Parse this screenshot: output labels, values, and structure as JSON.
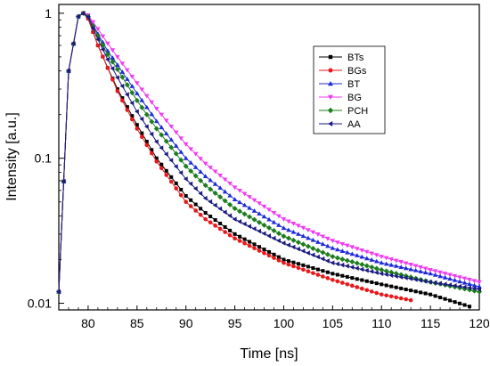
{
  "chart_data": {
    "type": "scatter",
    "title": "",
    "xlabel": "Time [ns]",
    "ylabel": "Intensity [a.u.]",
    "xlim": [
      77,
      120
    ],
    "ylim": [
      0.009,
      1.15
    ],
    "yscale": "log",
    "xticks": [
      "80",
      "85",
      "90",
      "95",
      "100",
      "105",
      "110",
      "115",
      "120"
    ],
    "xtick_values": [
      80,
      85,
      90,
      95,
      100,
      105,
      110,
      115,
      120
    ],
    "yticks": [
      "0.01",
      "0.1",
      "1"
    ],
    "ytick_values": [
      0.01,
      0.1,
      1
    ],
    "grid": false,
    "legend_position": "top-right",
    "series": [
      {
        "name": "BTs",
        "color": "#000000",
        "marker": "square",
        "x": [
          77,
          78,
          79,
          79.5,
          80,
          81,
          82,
          83,
          85,
          87,
          90,
          92,
          95,
          100,
          105,
          110,
          115,
          119
        ],
        "y": [
          0.012,
          0.4,
          0.95,
          1.0,
          0.92,
          0.6,
          0.42,
          0.3,
          0.17,
          0.1,
          0.055,
          0.042,
          0.03,
          0.02,
          0.016,
          0.0135,
          0.0115,
          0.0095
        ]
      },
      {
        "name": "BGs",
        "color": "#e8191c",
        "marker": "circle",
        "x": [
          77,
          78,
          79,
          79.5,
          80,
          81,
          82,
          83,
          85,
          87,
          90,
          92,
          95,
          100,
          105,
          110,
          113
        ],
        "y": [
          0.012,
          0.4,
          0.95,
          1.0,
          0.92,
          0.6,
          0.42,
          0.29,
          0.16,
          0.095,
          0.05,
          0.038,
          0.028,
          0.019,
          0.0145,
          0.0115,
          0.0105
        ]
      },
      {
        "name": "BT",
        "color": "#1f2bd9",
        "marker": "triangle-up",
        "x": [
          77,
          78,
          79,
          79.5,
          80,
          81,
          82,
          83,
          85,
          87,
          90,
          92,
          95,
          100,
          105,
          110,
          115,
          120
        ],
        "y": [
          0.012,
          0.4,
          0.95,
          1.0,
          0.96,
          0.72,
          0.55,
          0.44,
          0.28,
          0.18,
          0.1,
          0.075,
          0.052,
          0.033,
          0.024,
          0.019,
          0.016,
          0.013
        ]
      },
      {
        "name": "BG",
        "color": "#f03cf0",
        "marker": "triangle-down",
        "x": [
          77,
          78,
          79,
          79.5,
          80,
          81,
          82,
          83,
          85,
          87,
          90,
          92,
          95,
          100,
          105,
          110,
          115,
          120
        ],
        "y": [
          0.012,
          0.4,
          0.95,
          1.0,
          0.97,
          0.78,
          0.62,
          0.5,
          0.33,
          0.22,
          0.125,
          0.092,
          0.063,
          0.038,
          0.027,
          0.021,
          0.017,
          0.014
        ]
      },
      {
        "name": "PCH",
        "color": "#1e7d1e",
        "marker": "diamond",
        "x": [
          77,
          78,
          79,
          79.5,
          80,
          81,
          82,
          83,
          85,
          87,
          90,
          92,
          95,
          100,
          105,
          110,
          115,
          120
        ],
        "y": [
          0.012,
          0.4,
          0.95,
          1.0,
          0.95,
          0.7,
          0.52,
          0.41,
          0.25,
          0.16,
          0.088,
          0.065,
          0.045,
          0.029,
          0.021,
          0.017,
          0.014,
          0.012
        ]
      },
      {
        "name": "AA",
        "color": "#1a1a80",
        "marker": "triangle-left",
        "x": [
          77,
          78,
          79,
          79.5,
          80,
          81,
          82,
          83,
          85,
          87,
          90,
          92,
          95,
          100,
          105,
          110,
          115,
          120
        ],
        "y": [
          0.012,
          0.4,
          0.95,
          1.0,
          0.94,
          0.66,
          0.48,
          0.36,
          0.21,
          0.13,
          0.072,
          0.053,
          0.038,
          0.026,
          0.019,
          0.016,
          0.014,
          0.0125
        ]
      }
    ]
  }
}
